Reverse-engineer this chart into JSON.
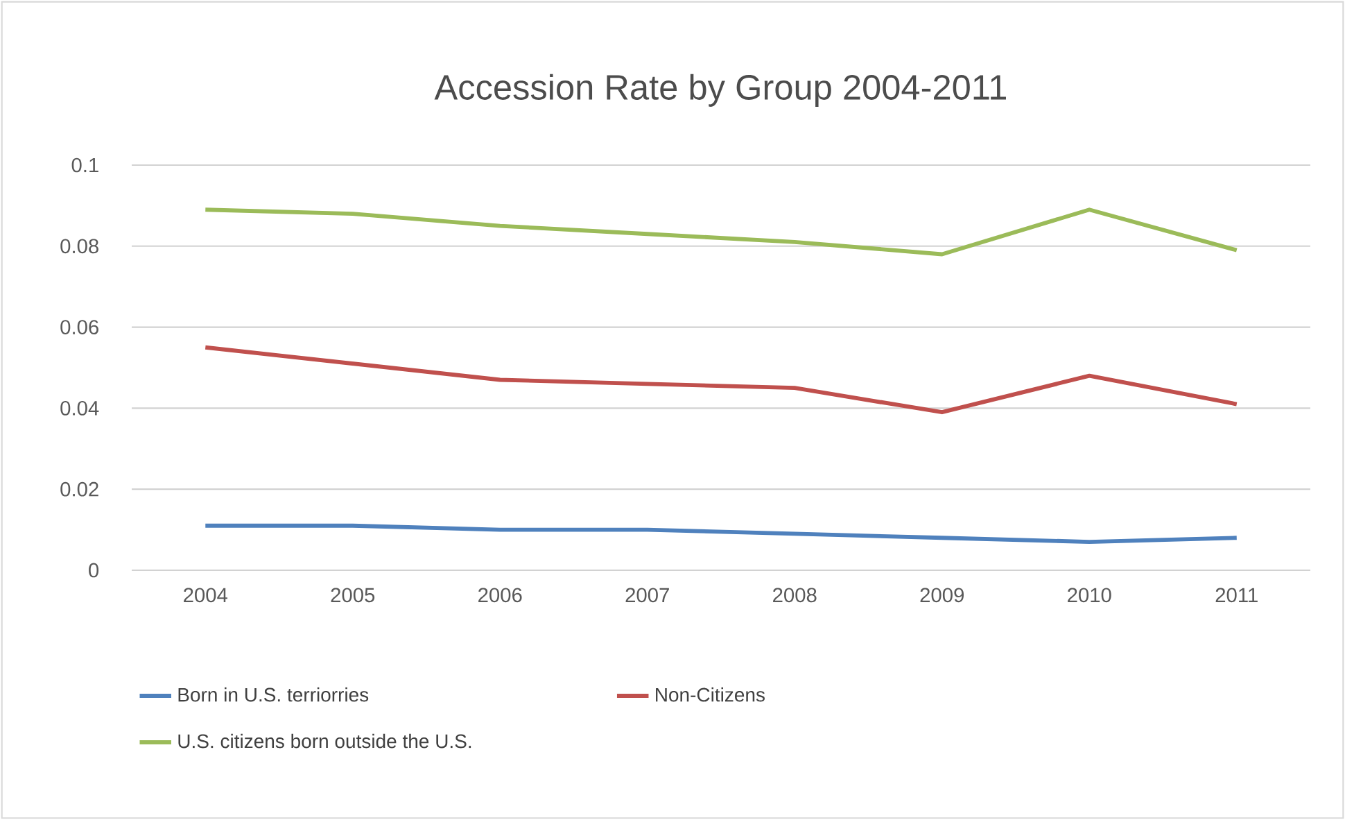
{
  "chart_data": {
    "type": "line",
    "title": "Accession Rate by Group 2004-2011",
    "categories": [
      "2004",
      "2005",
      "2006",
      "2007",
      "2008",
      "2009",
      "2010",
      "2011"
    ],
    "series": [
      {
        "name": "Born in U.S. terriorries",
        "color": "#4f81bd",
        "values": [
          0.011,
          0.011,
          0.01,
          0.01,
          0.009,
          0.008,
          0.007,
          0.008
        ]
      },
      {
        "name": "Non-Citizens",
        "color": "#c0504d",
        "values": [
          0.055,
          0.051,
          0.047,
          0.046,
          0.045,
          0.039,
          0.048,
          0.041
        ]
      },
      {
        "name": "U.S. citizens born outside the U.S.",
        "color": "#9bbb59",
        "values": [
          0.089,
          0.088,
          0.085,
          0.083,
          0.081,
          0.078,
          0.089,
          0.079
        ]
      }
    ],
    "ylim": [
      0,
      0.1
    ],
    "yticks": [
      0,
      0.02,
      0.04,
      0.06,
      0.08,
      0.1
    ],
    "grid": "y",
    "legend": "bottom",
    "marker": "none",
    "line_style": "solid"
  }
}
